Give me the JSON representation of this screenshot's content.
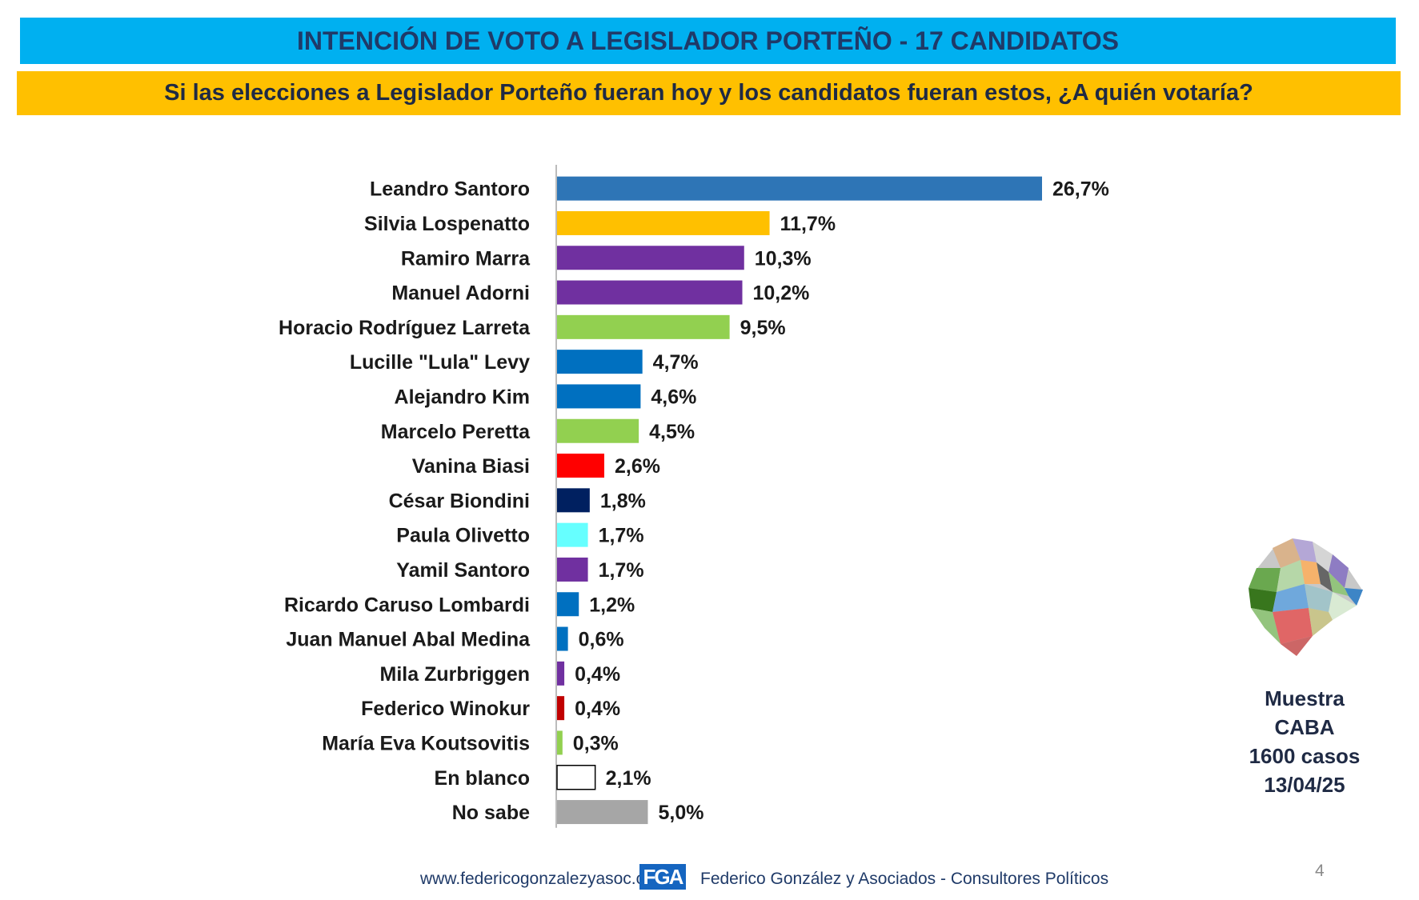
{
  "header": {
    "title": "INTENCIÓN DE VOTO A LEGISLADOR PORTEÑO - 17 CANDIDATOS",
    "question": "Si las elecciones a Legislador Porteño fueran hoy y los candidatos fueran estos, ¿A quién votaría?"
  },
  "chart_data": {
    "type": "bar",
    "orientation": "horizontal",
    "categories": [
      "Leandro Santoro",
      "Silvia Lospenatto",
      "Ramiro Marra",
      "Manuel Adorni",
      "Horacio Rodríguez Larreta",
      "Lucille \"Lula\" Levy",
      "Alejandro Kim",
      "Marcelo Peretta",
      "Vanina Biasi",
      "César Biondini",
      "Paula Olivetto",
      "Yamil Santoro",
      "Ricardo Caruso Lombardi",
      "Juan Manuel Abal Medina",
      "Mila Zurbriggen",
      "Federico Winokur",
      "María Eva Koutsovitis",
      "En blanco",
      "No sabe"
    ],
    "values": [
      26.7,
      11.7,
      10.3,
      10.2,
      9.5,
      4.7,
      4.6,
      4.5,
      2.6,
      1.8,
      1.7,
      1.7,
      1.2,
      0.6,
      0.4,
      0.4,
      0.3,
      2.1,
      5.0
    ],
    "value_labels": [
      "26,7%",
      "11,7%",
      "10,3%",
      "10,2%",
      "9,5%",
      "4,7%",
      "4,6%",
      "4,5%",
      "2,6%",
      "1,8%",
      "1,7%",
      "1,7%",
      "1,2%",
      "0,6%",
      "0,4%",
      "0,4%",
      "0,3%",
      "2,1%",
      "5,0%"
    ],
    "colors": [
      "#2e75b6",
      "#ffc000",
      "#7030a0",
      "#7030a0",
      "#92d050",
      "#0070c0",
      "#0070c0",
      "#92d050",
      "#ff0000",
      "#002060",
      "#66ffff",
      "#7030a0",
      "#0070c0",
      "#0070c0",
      "#7030a0",
      "#c00000",
      "#92d050",
      "#ffffff",
      "#a6a6a6"
    ],
    "bar_outline_color": "#000000",
    "title": "",
    "xlabel": "",
    "ylabel": "",
    "xlim": [
      0,
      26.7
    ],
    "grid": false,
    "legend": "none"
  },
  "sample": {
    "line1": "Muestra",
    "line2": "CABA",
    "line3": "1600 casos",
    "line4": "13/04/25"
  },
  "footer": {
    "url": "www.federicogonzalezyasoc.com",
    "logo_text": "FGA",
    "company": "Federico González y Asociados - Consultores Políticos",
    "page_number": "4"
  }
}
